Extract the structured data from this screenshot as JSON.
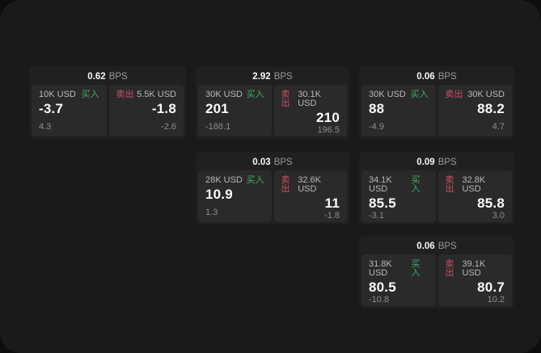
{
  "labels": {
    "bps_unit": "BPS",
    "buy": "买入",
    "sell": "卖出"
  },
  "colors": {
    "buy_accent": "#3fae66",
    "sell_accent": "#cf4f68",
    "container_bg": "#1a1a1a",
    "card_bg": "#202020",
    "panel_bg": "#2a2a2a"
  },
  "cards": [
    {
      "bps": "0.62",
      "buy": {
        "amount": "10K USD",
        "price": "-3.7",
        "delta": "4.3"
      },
      "sell": {
        "amount": "5.5K USD",
        "price": "-1.8",
        "delta": "-2.6"
      }
    },
    {
      "bps": "2.92",
      "buy": {
        "amount": "30K USD",
        "price": "201",
        "delta": "-188.1"
      },
      "sell": {
        "amount": "30.1K USD",
        "price": "210",
        "delta": "196.5"
      }
    },
    {
      "bps": "0.06",
      "buy": {
        "amount": "30K USD",
        "price": "88",
        "delta": "-4.9"
      },
      "sell": {
        "amount": "30K USD",
        "price": "88.2",
        "delta": "4.7"
      }
    },
    {
      "bps": "0.03",
      "buy": {
        "amount": "28K USD",
        "price": "10.9",
        "delta": "1.3"
      },
      "sell": {
        "amount": "32.6K USD",
        "price": "11",
        "delta": "-1.8"
      }
    },
    {
      "bps": "0.09",
      "buy": {
        "amount": "34.1K USD",
        "price": "85.5",
        "delta": "-3.1"
      },
      "sell": {
        "amount": "32.8K USD",
        "price": "85.8",
        "delta": "3.0"
      }
    },
    {
      "bps": "0.06",
      "buy": {
        "amount": "31.8K USD",
        "price": "80.5",
        "delta": "-10.8"
      },
      "sell": {
        "amount": "39.1K USD",
        "price": "80.7",
        "delta": "10.2"
      }
    }
  ]
}
